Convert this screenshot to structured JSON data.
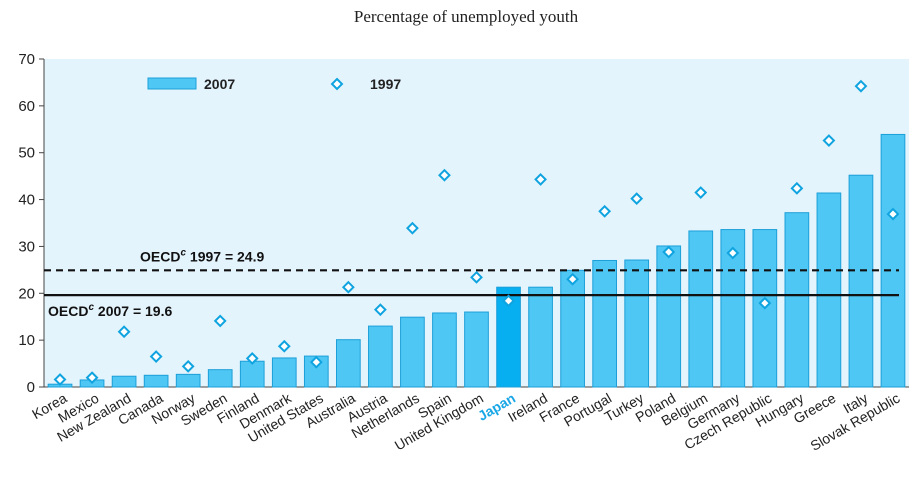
{
  "chart_data": {
    "type": "bar",
    "title": "Percentage of unemployed youth",
    "ylim": [
      0,
      70
    ],
    "yticks": [
      0,
      10,
      20,
      30,
      40,
      50,
      60,
      70
    ],
    "categories": [
      "Korea",
      "Mexico",
      "New Zealand",
      "Canada",
      "Norway",
      "Sweden",
      "Finland",
      "Denmark",
      "United States",
      "Australia",
      "Austria",
      "Netherlands",
      "Spain",
      "United Kingdom",
      "Japan",
      "Ireland",
      "France",
      "Portugal",
      "Turkey",
      "Poland",
      "Belgium",
      "Germany",
      "Czech Republic",
      "Hungary",
      "Greece",
      "Italy",
      "Slovak Republic"
    ],
    "highlight_category": "Japan",
    "series": [
      {
        "name": "2007",
        "kind": "bar",
        "values": [
          0.6,
          1.5,
          2.3,
          2.5,
          2.7,
          3.7,
          5.5,
          6.2,
          6.6,
          10.1,
          13.0,
          14.9,
          15.8,
          16.0,
          21.3,
          21.3,
          24.9,
          27.0,
          27.1,
          30.1,
          33.3,
          33.6,
          33.6,
          37.2,
          41.4,
          45.2,
          53.9
        ]
      },
      {
        "name": "1997",
        "kind": "marker",
        "values": [
          1.6,
          2.0,
          11.8,
          6.5,
          4.4,
          14.1,
          6.1,
          8.7,
          5.3,
          21.3,
          16.5,
          33.9,
          45.2,
          23.4,
          18.4,
          44.3,
          23.0,
          37.5,
          40.2,
          28.8,
          41.5,
          28.6,
          17.9,
          42.4,
          52.6,
          64.2,
          36.9
        ]
      }
    ],
    "reference_lines": [
      {
        "label_prefix": "OECD",
        "label_sup": "c",
        "label_suffix": " 1997 = 24.9",
        "value": 24.9,
        "style": "dashed"
      },
      {
        "label_prefix": "OECD",
        "label_sup": "c",
        "label_suffix": " 2007 = 19.6",
        "value": 19.6,
        "style": "solid"
      }
    ],
    "legend_position": "top-left",
    "grid": false,
    "colors": {
      "plot_background": "#e4f4fd",
      "bar_fill": "#4ec7f4",
      "bar_stroke": "#1c9fd8",
      "highlight_fill": "#07aef0",
      "marker_stroke": "#0fa4e0",
      "marker_fill": "#ffffff",
      "axis": "#444444"
    }
  }
}
